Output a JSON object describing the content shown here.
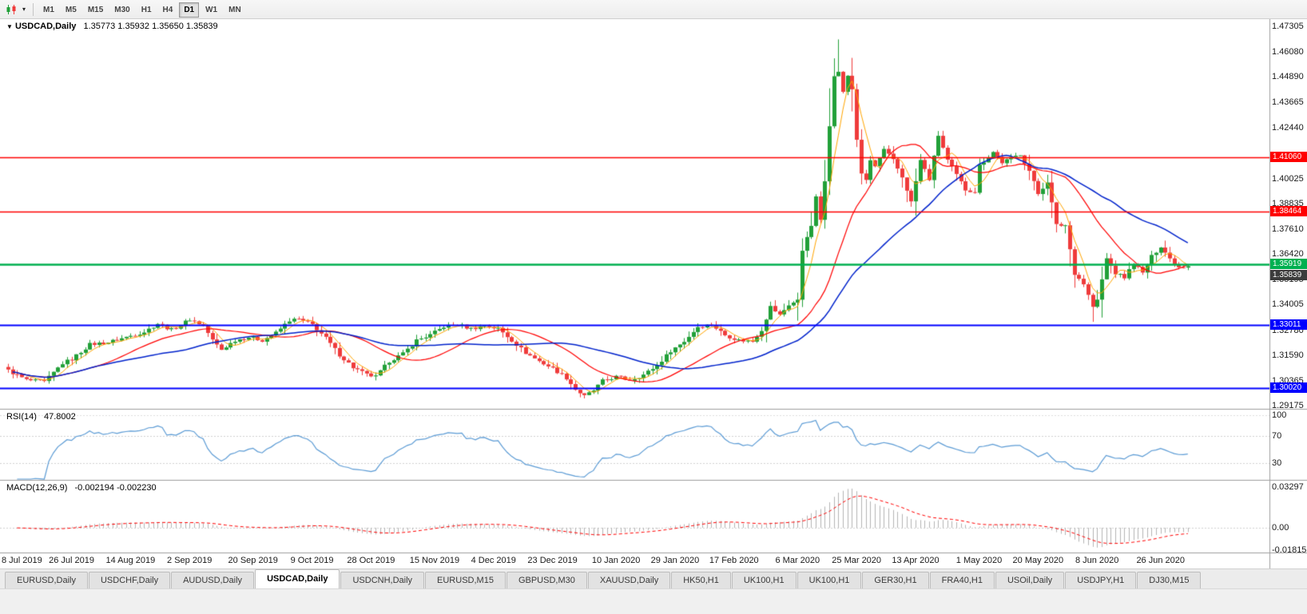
{
  "toolbar": {
    "chart_icon": "candlestick-chart-icon",
    "dropdown_arrow": "▾",
    "timeframes": [
      {
        "label": "M1",
        "active": false
      },
      {
        "label": "M5",
        "active": false
      },
      {
        "label": "M15",
        "active": false
      },
      {
        "label": "M30",
        "active": false
      },
      {
        "label": "H1",
        "active": false
      },
      {
        "label": "H4",
        "active": false
      },
      {
        "label": "D1",
        "active": true
      },
      {
        "label": "W1",
        "active": false
      },
      {
        "label": "MN",
        "active": false
      }
    ]
  },
  "main_chart": {
    "arrow": "▼",
    "title": "USDCAD,Daily",
    "ohlc": "1.35773 1.35932 1.35650 1.35839"
  },
  "rsi": {
    "label": "RSI(14)",
    "value": "47.8002",
    "levels": [
      {
        "text": "100",
        "v": 100
      },
      {
        "text": "70",
        "v": 70
      },
      {
        "text": "30",
        "v": 30
      }
    ]
  },
  "macd": {
    "label": "MACD(12,26,9)",
    "value": "-0.002194 -0.002230",
    "levels": [
      {
        "text": "0.03297",
        "v": 0.03297
      },
      {
        "text": "0.00",
        "v": 0
      },
      {
        "text": "-0.01815",
        "v": -0.01815
      }
    ]
  },
  "price_axis": {
    "labels": [
      {
        "text": "1.47305",
        "price": 1.47305
      },
      {
        "text": "1.46080",
        "price": 1.4608
      },
      {
        "text": "1.44890",
        "price": 1.4489
      },
      {
        "text": "1.43665",
        "price": 1.43665
      },
      {
        "text": "1.42440",
        "price": 1.4244
      },
      {
        "text": "1.40025",
        "price": 1.40025
      },
      {
        "text": "1.38835",
        "price": 1.38835
      },
      {
        "text": "1.37610",
        "price": 1.3761
      },
      {
        "text": "1.36420",
        "price": 1.3642
      },
      {
        "text": "1.35195",
        "price": 1.35195
      },
      {
        "text": "1.34005",
        "price": 1.34005
      },
      {
        "text": "1.32780",
        "price": 1.3278
      },
      {
        "text": "1.31590",
        "price": 1.3159
      },
      {
        "text": "1.30365",
        "price": 1.30365
      },
      {
        "text": "1.29175",
        "price": 1.29175
      }
    ],
    "badges": [
      {
        "text": "1.41060",
        "price": 1.4106,
        "bg": "#ff0000"
      },
      {
        "text": "1.38464",
        "price": 1.38464,
        "bg": "#ff0000"
      },
      {
        "text": "1.35919",
        "price": 1.35919,
        "bg": "#00b050"
      },
      {
        "text": "1.35839",
        "price": 1.35839,
        "bg": "#3c3c3c"
      },
      {
        "text": "1.33011",
        "price": 1.33011,
        "bg": "#0000ff"
      },
      {
        "text": "1.30020",
        "price": 1.3002,
        "bg": "#0000ff"
      }
    ]
  },
  "date_axis": [
    {
      "label": "8 Jul 2019",
      "i": 0
    },
    {
      "label": "26 Jul 2019",
      "i": 14
    },
    {
      "label": "14 Aug 2019",
      "i": 27
    },
    {
      "label": "2 Sep 2019",
      "i": 40
    },
    {
      "label": "20 Sep 2019",
      "i": 54
    },
    {
      "label": "9 Oct 2019",
      "i": 67
    },
    {
      "label": "28 Oct 2019",
      "i": 80
    },
    {
      "label": "15 Nov 2019",
      "i": 94
    },
    {
      "label": "4 Dec 2019",
      "i": 107
    },
    {
      "label": "23 Dec 2019",
      "i": 120
    },
    {
      "label": "10 Jan 2020",
      "i": 134
    },
    {
      "label": "29 Jan 2020",
      "i": 147
    },
    {
      "label": "17 Feb 2020",
      "i": 160
    },
    {
      "label": "6 Mar 2020",
      "i": 174
    },
    {
      "label": "25 Mar 2020",
      "i": 187
    },
    {
      "label": "13 Apr 2020",
      "i": 200
    },
    {
      "label": "1 May 2020",
      "i": 214
    },
    {
      "label": "20 May 2020",
      "i": 227
    },
    {
      "label": "8 Jun 2020",
      "i": 240
    },
    {
      "label": "26 Jun 2020",
      "i": 254
    }
  ],
  "tabs": [
    {
      "label": "EURUSD,Daily",
      "active": false
    },
    {
      "label": "USDCHF,Daily",
      "active": false
    },
    {
      "label": "AUDUSD,Daily",
      "active": false
    },
    {
      "label": "USDCAD,Daily",
      "active": true
    },
    {
      "label": "USDCNH,Daily",
      "active": false
    },
    {
      "label": "EURUSD,M15",
      "active": false
    },
    {
      "label": "GBPUSD,M30",
      "active": false
    },
    {
      "label": "XAUUSD,Daily",
      "active": false
    },
    {
      "label": "HK50,H1",
      "active": false
    },
    {
      "label": "UK100,H1",
      "active": false
    },
    {
      "label": "UK100,H1",
      "active": false
    },
    {
      "label": "GER30,H1",
      "active": false
    },
    {
      "label": "FRA40,H1",
      "active": false
    },
    {
      "label": "USOil,Daily",
      "active": false
    },
    {
      "label": "USDJPY,H1",
      "active": false
    },
    {
      "label": "DJ30,M15",
      "active": false
    }
  ],
  "colors": {
    "up": "#21a038",
    "down": "#ef3b3b",
    "ma_fast": "#ffa500",
    "ma_mid": "#ff0000",
    "ma_slow": "#0022cc",
    "rsi_line": "#5b9bd5",
    "macd_bar": "#b4b4b4",
    "macd_signal": "#ff0000",
    "grid": "#cfcfcf",
    "separator": "#9e9e9e"
  },
  "chart_data": {
    "type": "candlestick",
    "symbol": "USDCAD",
    "timeframe": "Daily",
    "candle_count": 261,
    "price_range": {
      "top": 1.47649,
      "bottom": 1.29022
    },
    "last_candle": {
      "open": 1.35773,
      "high": 1.35932,
      "low": 1.3565,
      "close": 1.35839
    },
    "wick_overrides": [
      {
        "i": 127,
        "low": 1.2952
      },
      {
        "i": 183,
        "high": 1.4668
      },
      {
        "i": 239,
        "low": 1.3318
      }
    ],
    "close_waypoints": [
      [
        0,
        1.3085
      ],
      [
        4,
        1.304
      ],
      [
        8,
        1.303
      ],
      [
        12,
        1.312
      ],
      [
        14,
        1.314
      ],
      [
        18,
        1.321
      ],
      [
        22,
        1.322
      ],
      [
        26,
        1.3245
      ],
      [
        30,
        1.327
      ],
      [
        33,
        1.331
      ],
      [
        36,
        1.328
      ],
      [
        40,
        1.333
      ],
      [
        43,
        1.33
      ],
      [
        45,
        1.323
      ],
      [
        47,
        1.3185
      ],
      [
        50,
        1.323
      ],
      [
        53,
        1.3245
      ],
      [
        56,
        1.323
      ],
      [
        59,
        1.3265
      ],
      [
        62,
        1.3325
      ],
      [
        64,
        1.333
      ],
      [
        67,
        1.3305
      ],
      [
        70,
        1.324
      ],
      [
        73,
        1.316
      ],
      [
        76,
        1.31
      ],
      [
        79,
        1.3065
      ],
      [
        81,
        1.3055
      ],
      [
        84,
        1.313
      ],
      [
        87,
        1.3165
      ],
      [
        90,
        1.323
      ],
      [
        93,
        1.3255
      ],
      [
        96,
        1.3295
      ],
      [
        99,
        1.3305
      ],
      [
        102,
        1.3285
      ],
      [
        105,
        1.33
      ],
      [
        108,
        1.3285
      ],
      [
        111,
        1.323
      ],
      [
        114,
        1.317
      ],
      [
        117,
        1.313
      ],
      [
        120,
        1.3095
      ],
      [
        123,
        1.305
      ],
      [
        125,
        1.2995
      ],
      [
        127,
        1.2962
      ],
      [
        129,
        1.299
      ],
      [
        131,
        1.3035
      ],
      [
        134,
        1.3055
      ],
      [
        137,
        1.304
      ],
      [
        140,
        1.3065
      ],
      [
        143,
        1.311
      ],
      [
        146,
        1.318
      ],
      [
        149,
        1.3225
      ],
      [
        152,
        1.3295
      ],
      [
        155,
        1.3305
      ],
      [
        158,
        1.3255
      ],
      [
        161,
        1.323
      ],
      [
        164,
        1.3225
      ],
      [
        166,
        1.328
      ],
      [
        168,
        1.339
      ],
      [
        170,
        1.335
      ],
      [
        172,
        1.34
      ],
      [
        174,
        1.342
      ],
      [
        175,
        1.366
      ],
      [
        176,
        1.373
      ],
      [
        177,
        1.377
      ],
      [
        178,
        1.392
      ],
      [
        179,
        1.38
      ],
      [
        180,
        1.399
      ],
      [
        181,
        1.426
      ],
      [
        182,
        1.45
      ],
      [
        183,
        1.451
      ],
      [
        184,
        1.442
      ],
      [
        185,
        1.449
      ],
      [
        186,
        1.443
      ],
      [
        187,
        1.419
      ],
      [
        188,
        1.403
      ],
      [
        189,
        1.399
      ],
      [
        190,
        1.409
      ],
      [
        191,
        1.406
      ],
      [
        193,
        1.414
      ],
      [
        195,
        1.409
      ],
      [
        197,
        1.401
      ],
      [
        199,
        1.389
      ],
      [
        201,
        1.409
      ],
      [
        203,
        1.4
      ],
      [
        205,
        1.421
      ],
      [
        207,
        1.409
      ],
      [
        209,
        1.402
      ],
      [
        211,
        1.395
      ],
      [
        213,
        1.394
      ],
      [
        214,
        1.4065
      ],
      [
        217,
        1.413
      ],
      [
        219,
        1.408
      ],
      [
        221,
        1.41
      ],
      [
        223,
        1.412
      ],
      [
        225,
        1.404
      ],
      [
        227,
        1.393
      ],
      [
        229,
        1.399
      ],
      [
        231,
        1.378
      ],
      [
        233,
        1.378
      ],
      [
        235,
        1.355
      ],
      [
        237,
        1.35
      ],
      [
        239,
        1.339
      ],
      [
        240,
        1.342
      ],
      [
        242,
        1.362
      ],
      [
        244,
        1.355
      ],
      [
        246,
        1.353
      ],
      [
        248,
        1.36
      ],
      [
        250,
        1.355
      ],
      [
        252,
        1.363
      ],
      [
        254,
        1.368
      ],
      [
        256,
        1.362
      ],
      [
        258,
        1.358
      ],
      [
        260,
        1.35839
      ]
    ],
    "horizontal_lines": [
      {
        "price": 1.4106,
        "color": "#ff0000",
        "width": 1.6
      },
      {
        "price": 1.38464,
        "color": "#ff0000",
        "width": 1.6
      },
      {
        "price": 1.35919,
        "color": "#00b050",
        "width": 2.4
      },
      {
        "price": 1.33011,
        "color": "#0000ff",
        "width": 2
      },
      {
        "price": 1.3002,
        "color": "#0000ff",
        "width": 2
      }
    ],
    "moving_averages": [
      {
        "period": 5,
        "color": "#ffa500",
        "width": 1
      },
      {
        "period": 20,
        "color": "#ff0000",
        "width": 1.2
      },
      {
        "period": 40,
        "color": "#0022cc",
        "width": 1.5
      }
    ],
    "indicators": {
      "rsi": {
        "period": 14,
        "current": 47.8002,
        "levels": [
          30,
          70,
          100
        ]
      },
      "macd": {
        "fast": 12,
        "slow": 26,
        "signal": 9,
        "current": -0.002194,
        "signal_current": -0.00223,
        "axis_max": 0.03297,
        "axis_min": -0.01815
      }
    }
  }
}
